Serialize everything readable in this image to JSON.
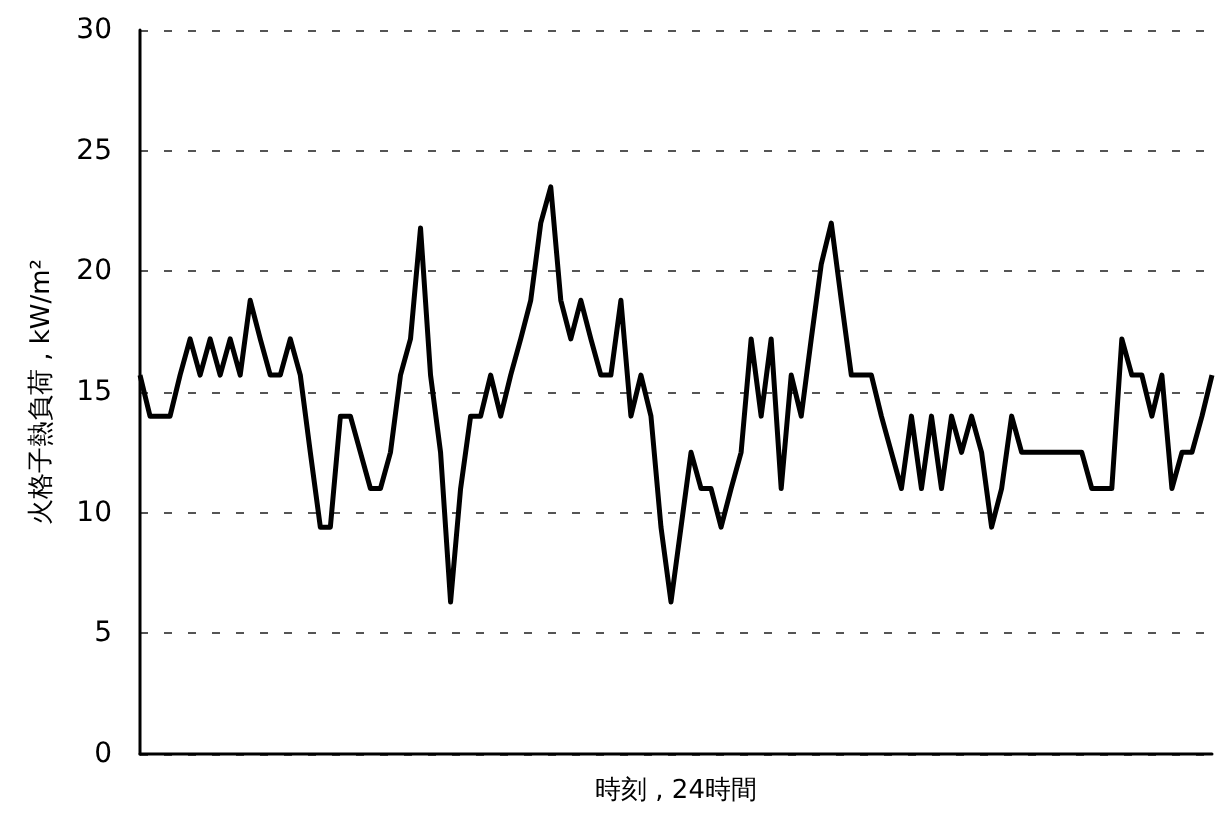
{
  "chart_data": {
    "type": "line",
    "xlabel": "時刻 , 24時間",
    "ylabel": "火格子熱負荷 , kW/m²",
    "categories": [
      null,
      null,
      null,
      null,
      null,
      null,
      null,
      null,
      null,
      null,
      null,
      null,
      null,
      null,
      null,
      null,
      null,
      null,
      null,
      null,
      null,
      null,
      null,
      null,
      null,
      null,
      null,
      null,
      null,
      null,
      null,
      null,
      null,
      null,
      null,
      null,
      null,
      null,
      null,
      null,
      null,
      null,
      null,
      null,
      null,
      null,
      null,
      null,
      null,
      null,
      null,
      null,
      null,
      null,
      null,
      null,
      null,
      null,
      null,
      null,
      null,
      null,
      null,
      null,
      null,
      null,
      null,
      null,
      null,
      null,
      null,
      null,
      null,
      null,
      null,
      null,
      null,
      null,
      null,
      null,
      null,
      null,
      null,
      null,
      null,
      null,
      null,
      null,
      null,
      null,
      null,
      null,
      null,
      null,
      null,
      null,
      null,
      null,
      null,
      null,
      null,
      null,
      null,
      null,
      null,
      null,
      null,
      null
    ],
    "series": [
      {
        "color": "#000000",
        "values": [
          15.7,
          14,
          14,
          14,
          15.7,
          17.2,
          15.7,
          17.2,
          15.7,
          17.2,
          15.7,
          18.8,
          17.2,
          15.7,
          15.7,
          17.2,
          15.7,
          12.5,
          9.4,
          9.4,
          14,
          14,
          12.5,
          11,
          11,
          12.5,
          15.7,
          17.2,
          21.8,
          15.7,
          12.5,
          6.3,
          11,
          14,
          14,
          15.7,
          14,
          15.7,
          17.2,
          18.8,
          22,
          23.5,
          18.8,
          17.2,
          18.8,
          17.2,
          15.7,
          15.7,
          18.8,
          14,
          15.7,
          14,
          9.4,
          6.3,
          9.4,
          12.5,
          11,
          11,
          9.4,
          11,
          12.5,
          17.2,
          14,
          17.2,
          11,
          15.7,
          14,
          17.2,
          20.3,
          22,
          18.8,
          15.7,
          15.7,
          15.7,
          14,
          12.5,
          11,
          14,
          11,
          14,
          11,
          14,
          12.5,
          14,
          12.5,
          9.4,
          11,
          14,
          12.5,
          12.5,
          12.5,
          12.5,
          12.5,
          12.5,
          12.5,
          11,
          11,
          11,
          17.2,
          15.7,
          15.7,
          14,
          15.7,
          11,
          12.5,
          12.5,
          14,
          15.7
        ]
      }
    ],
    "ylim": [
      0,
      30
    ],
    "yticks": [
      0,
      5,
      10,
      15,
      20,
      25,
      30
    ],
    "grid": "y",
    "line_style": "solid",
    "tick_labels": "y"
  }
}
